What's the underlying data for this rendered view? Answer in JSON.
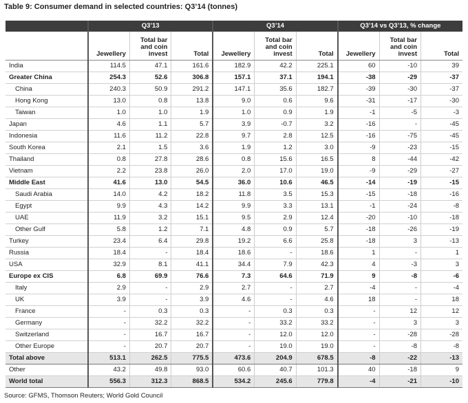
{
  "title": "Table 9: Consumer demand in selected countries: Q3’14 (tonnes)",
  "table": {
    "groups": [
      "Q3’13",
      "Q3’14",
      "Q3’14 vs Q3’13, % change"
    ],
    "columns": [
      "Jewellery",
      "Total bar and coin invest",
      "Total",
      "Jewellery",
      "Total bar and coin invest",
      "Total",
      "Jewellery",
      "Total bar and coin invest",
      "Total"
    ],
    "rows": [
      [
        "India",
        "114.5",
        "47.1",
        "161.6",
        "182.9",
        "42.2",
        "225.1",
        "60",
        "-10",
        "39"
      ],
      [
        "Greater China",
        "254.3",
        "52.6",
        "306.8",
        "157.1",
        "37.1",
        "194.1",
        "-38",
        "-29",
        "-37"
      ],
      [
        "China",
        "240.3",
        "50.9",
        "291.2",
        "147.1",
        "35.6",
        "182.7",
        "-39",
        "-30",
        "-37"
      ],
      [
        "Hong Kong",
        "13.0",
        "0.8",
        "13.8",
        "9.0",
        "0.6",
        "9.6",
        "-31",
        "-17",
        "-30"
      ],
      [
        "Taiwan",
        "1.0",
        "1.0",
        "1.9",
        "1.0",
        "0.9",
        "1.9",
        "-1",
        "-5",
        "-3"
      ],
      [
        "Japan",
        "4.6",
        "1.1",
        "5.7",
        "3.9",
        "-0.7",
        "3.2",
        "-16",
        "-",
        "-45"
      ],
      [
        "Indonesia",
        "11.6",
        "11.2",
        "22.8",
        "9.7",
        "2.8",
        "12.5",
        "-16",
        "-75",
        "-45"
      ],
      [
        "South Korea",
        "2.1",
        "1.5",
        "3.6",
        "1.9",
        "1.2",
        "3.0",
        "-9",
        "-23",
        "-15"
      ],
      [
        "Thailand",
        "0.8",
        "27.8",
        "28.6",
        "0.8",
        "15.6",
        "16.5",
        "8",
        "-44",
        "-42"
      ],
      [
        "Vietnam",
        "2.2",
        "23.8",
        "26.0",
        "2.0",
        "17.0",
        "19.0",
        "-9",
        "-29",
        "-27"
      ],
      [
        "Middle East",
        "41.6",
        "13.0",
        "54.5",
        "36.0",
        "10.6",
        "46.5",
        "-14",
        "-19",
        "-15"
      ],
      [
        "Saudi Arabia",
        "14.0",
        "4.2",
        "18.2",
        "11.8",
        "3.5",
        "15.3",
        "-15",
        "-18",
        "-16"
      ],
      [
        "Egypt",
        "9.9",
        "4.3",
        "14.2",
        "9.9",
        "3.3",
        "13.1",
        "-1",
        "-24",
        "-8"
      ],
      [
        "UAE",
        "11.9",
        "3.2",
        "15.1",
        "9.5",
        "2.9",
        "12.4",
        "-20",
        "-10",
        "-18"
      ],
      [
        "Other Gulf",
        "5.8",
        "1.2",
        "7.1",
        "4.8",
        "0.9",
        "5.7",
        "-18",
        "-26",
        "-19"
      ],
      [
        "Turkey",
        "23.4",
        "6.4",
        "29.8",
        "19.2",
        "6.6",
        "25.8",
        "-18",
        "3",
        "-13"
      ],
      [
        "Russia",
        "18.4",
        "-",
        "18.4",
        "18.6",
        "-",
        "18.6",
        "1",
        "-",
        "1"
      ],
      [
        "USA",
        "32.9",
        "8.1",
        "41.1",
        "34.4",
        "7.9",
        "42.3",
        "4",
        "-3",
        "3"
      ],
      [
        "Europe ex CIS",
        "6.8",
        "69.9",
        "76.6",
        "7.3",
        "64.6",
        "71.9",
        "9",
        "-8",
        "-6"
      ],
      [
        "Italy",
        "2.9",
        "-",
        "2.9",
        "2.7",
        "-",
        "2.7",
        "-4",
        "-",
        "-4"
      ],
      [
        "UK",
        "3.9",
        "-",
        "3.9",
        "4.6",
        "-",
        "4.6",
        "18",
        "-",
        "18"
      ],
      [
        "France",
        "-",
        "0.3",
        "0.3",
        "-",
        "0.3",
        "0.3",
        "-",
        "12",
        "12"
      ],
      [
        "Germany",
        "-",
        "32.2",
        "32.2",
        "-",
        "33.2",
        "33.2",
        "-",
        "3",
        "3"
      ],
      [
        "Switzerland",
        "-",
        "16.7",
        "16.7",
        "-",
        "12.0",
        "12.0",
        "-",
        "-28",
        "-28"
      ],
      [
        "Other Europe",
        "-",
        "20.7",
        "20.7",
        "-",
        "19.0",
        "19.0",
        "-",
        "-8",
        "-8"
      ],
      [
        "Total above",
        "513.1",
        "262.5",
        "775.5",
        "473.6",
        "204.9",
        "678.5",
        "-8",
        "-22",
        "-13"
      ],
      [
        "Other",
        "43.2",
        "49.8",
        "93.0",
        "60.6",
        "40.7",
        "101.3",
        "40",
        "-18",
        "9"
      ],
      [
        "World total",
        "556.3",
        "312.3",
        "868.5",
        "534.2",
        "245.6",
        "779.8",
        "-4",
        "-21",
        "-10"
      ]
    ]
  },
  "source": "Source: GFMS, Thomson Reuters; World Gold Council"
}
